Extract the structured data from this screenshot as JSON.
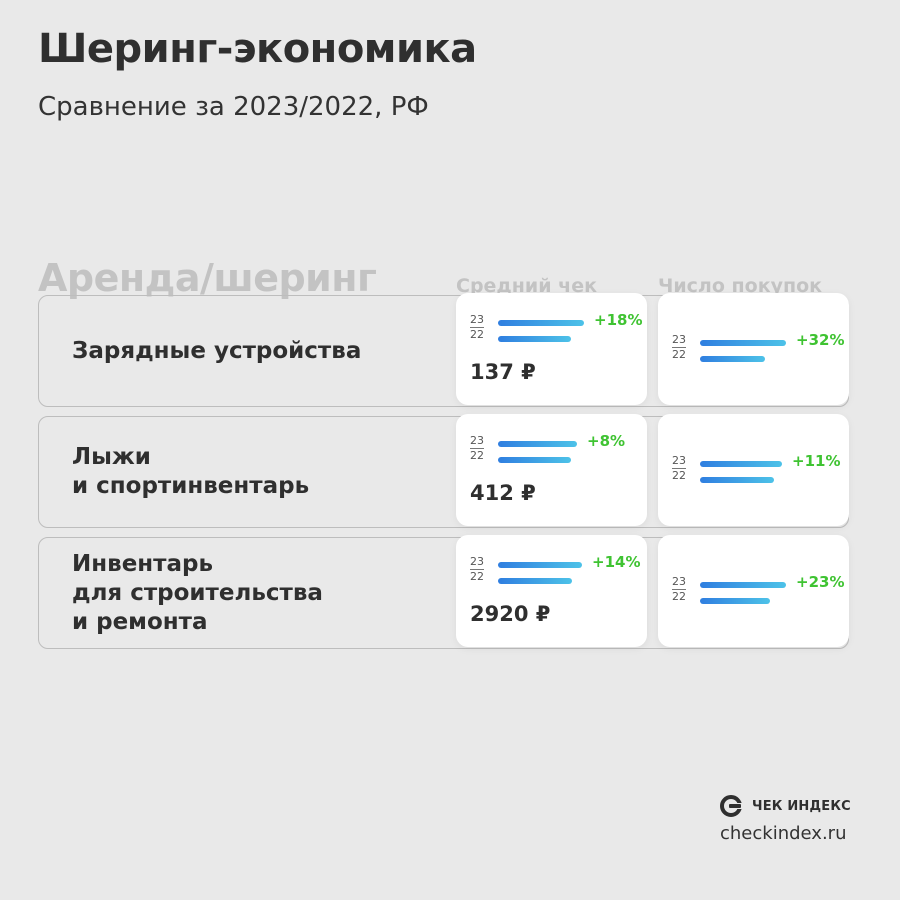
{
  "header": {
    "title": "Шеринг-экономика",
    "subtitle": "Сравнение за 2023/2022, РФ"
  },
  "section": {
    "title": "Аренда/шеринг"
  },
  "chart_data": {
    "type": "bar",
    "columns": [
      "Средний чек",
      "Число покупок"
    ],
    "year_labels": {
      "current": "23",
      "previous": "22"
    },
    "categories": [
      "Зарядные устройства",
      "Лыжи\nи спортинвентарь",
      "Инвентарь\nдля строительства\nи ремонта"
    ],
    "series": [
      {
        "name": "Средний чек",
        "change_labels": [
          "+18%",
          "+8%",
          "+14%"
        ],
        "change_values": [
          18,
          8,
          14
        ],
        "value_labels": [
          "137 ₽",
          "412 ₽",
          "2920 ₽"
        ]
      },
      {
        "name": "Число покупок",
        "change_labels": [
          "+32%",
          "+11%",
          "+23%"
        ],
        "change_values": [
          32,
          11,
          23
        ]
      }
    ]
  },
  "footer": {
    "brand": "ЧЕК ИНДЕКС",
    "site": "checkindex.ru"
  },
  "colors": {
    "bar_start": "#2f7ee0",
    "bar_end": "#4dc2e8",
    "positive": "#3fc332"
  }
}
